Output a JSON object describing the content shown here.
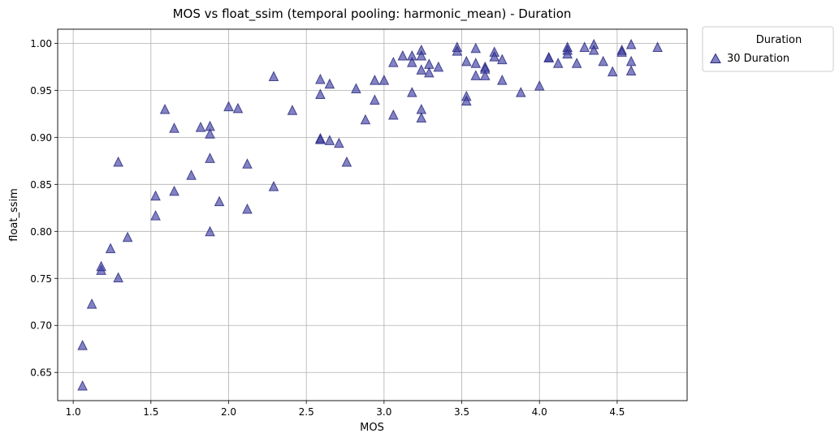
{
  "chart_data": {
    "type": "scatter",
    "title": "MOS vs float_ssim (temporal pooling: harmonic_mean) - Duration",
    "xlabel": "MOS",
    "ylabel": "float_ssim",
    "xlim": [
      0.9,
      4.95
    ],
    "ylim": [
      0.62,
      1.015
    ],
    "xticks": [
      1.0,
      1.5,
      2.0,
      2.5,
      3.0,
      3.5,
      4.0,
      4.5
    ],
    "xtick_labels": [
      "1.0",
      "1.5",
      "2.0",
      "2.5",
      "3.0",
      "3.5",
      "4.0",
      "4.5"
    ],
    "yticks": [
      0.65,
      0.7,
      0.75,
      0.8,
      0.85,
      0.9,
      0.95,
      1.0
    ],
    "ytick_labels": [
      "0.65",
      "0.70",
      "0.75",
      "0.80",
      "0.85",
      "0.90",
      "0.95",
      "1.00"
    ],
    "grid": true,
    "legend": {
      "title": "Duration",
      "placement": "outside-top-right",
      "entries": [
        "30 Duration"
      ]
    },
    "series": [
      {
        "name": "30 Duration",
        "marker": "triangle-up",
        "color": "#3f3fa5",
        "edge_color": "#26267a",
        "points": [
          [
            1.06,
            0.636
          ],
          [
            1.06,
            0.679
          ],
          [
            1.12,
            0.723
          ],
          [
            1.18,
            0.759
          ],
          [
            1.18,
            0.763
          ],
          [
            1.24,
            0.782
          ],
          [
            1.29,
            0.751
          ],
          [
            1.29,
            0.874
          ],
          [
            1.35,
            0.794
          ],
          [
            1.53,
            0.817
          ],
          [
            1.53,
            0.838
          ],
          [
            1.59,
            0.93
          ],
          [
            1.65,
            0.91
          ],
          [
            1.65,
            0.843
          ],
          [
            1.76,
            0.86
          ],
          [
            1.82,
            0.911
          ],
          [
            1.88,
            0.912
          ],
          [
            1.88,
            0.904
          ],
          [
            1.88,
            0.878
          ],
          [
            1.88,
            0.8
          ],
          [
            1.94,
            0.832
          ],
          [
            2.0,
            0.933
          ],
          [
            2.06,
            0.931
          ],
          [
            2.12,
            0.872
          ],
          [
            2.12,
            0.824
          ],
          [
            2.29,
            0.965
          ],
          [
            2.29,
            0.848
          ],
          [
            2.41,
            0.929
          ],
          [
            2.59,
            0.962
          ],
          [
            2.59,
            0.946
          ],
          [
            2.59,
            0.899
          ],
          [
            2.59,
            0.898
          ],
          [
            2.65,
            0.957
          ],
          [
            2.65,
            0.897
          ],
          [
            2.71,
            0.894
          ],
          [
            2.76,
            0.874
          ],
          [
            2.82,
            0.952
          ],
          [
            2.88,
            0.919
          ],
          [
            2.94,
            0.961
          ],
          [
            2.94,
            0.94
          ],
          [
            3.0,
            0.961
          ],
          [
            3.06,
            0.98
          ],
          [
            3.06,
            0.924
          ],
          [
            3.12,
            0.987
          ],
          [
            3.18,
            0.987
          ],
          [
            3.18,
            0.98
          ],
          [
            3.18,
            0.948
          ],
          [
            3.24,
            0.993
          ],
          [
            3.24,
            0.987
          ],
          [
            3.24,
            0.972
          ],
          [
            3.24,
            0.93
          ],
          [
            3.24,
            0.921
          ],
          [
            3.29,
            0.978
          ],
          [
            3.29,
            0.969
          ],
          [
            3.35,
            0.975
          ],
          [
            3.47,
            0.996
          ],
          [
            3.47,
            0.992
          ],
          [
            3.53,
            0.981
          ],
          [
            3.53,
            0.944
          ],
          [
            3.53,
            0.939
          ],
          [
            3.59,
            0.995
          ],
          [
            3.59,
            0.979
          ],
          [
            3.59,
            0.966
          ],
          [
            3.65,
            0.975
          ],
          [
            3.65,
            0.973
          ],
          [
            3.65,
            0.966
          ],
          [
            3.71,
            0.991
          ],
          [
            3.71,
            0.986
          ],
          [
            3.76,
            0.983
          ],
          [
            3.76,
            0.961
          ],
          [
            3.88,
            0.948
          ],
          [
            4.0,
            0.955
          ],
          [
            4.06,
            0.985
          ],
          [
            4.06,
            0.985
          ],
          [
            4.12,
            0.979
          ],
          [
            4.18,
            0.996
          ],
          [
            4.18,
            0.993
          ],
          [
            4.18,
            0.989
          ],
          [
            4.24,
            0.979
          ],
          [
            4.29,
            0.996
          ],
          [
            4.35,
            0.999
          ],
          [
            4.35,
            0.993
          ],
          [
            4.41,
            0.981
          ],
          [
            4.47,
            0.97
          ],
          [
            4.53,
            0.993
          ],
          [
            4.53,
            0.991
          ],
          [
            4.59,
            0.999
          ],
          [
            4.59,
            0.981
          ],
          [
            4.59,
            0.971
          ],
          [
            4.76,
            0.996
          ]
        ]
      }
    ]
  }
}
